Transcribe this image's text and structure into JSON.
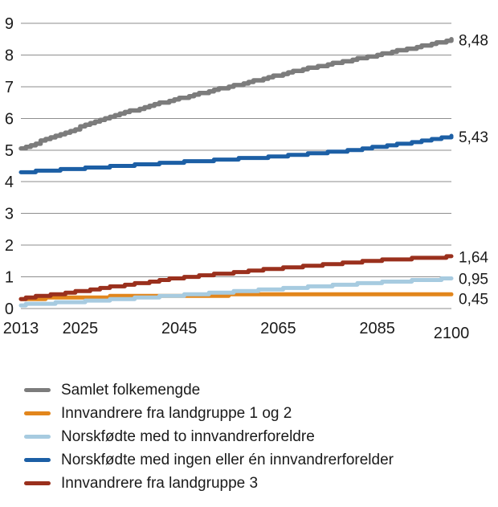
{
  "chart_data": {
    "type": "line",
    "title": "",
    "grid": true,
    "grid_color": "#8e8e8e",
    "legend_position": "bottom-left",
    "x_axis": {
      "range": [
        2013,
        2100
      ],
      "ticks": [
        2013,
        2025,
        2045,
        2065,
        2085,
        2100
      ]
    },
    "y_axis": {
      "range": [
        0,
        9
      ],
      "ticks": [
        0,
        1,
        2,
        3,
        4,
        5,
        6,
        7,
        8,
        9
      ]
    },
    "series": [
      {
        "id": "samlet-folkemengde",
        "name": "Samlet folkemengde",
        "color": "#7c7c7c",
        "width": 5.5,
        "end_label": "8,48",
        "end_value": 8.48,
        "points": [
          [
            2013,
            5.05
          ],
          [
            2020,
            5.45
          ],
          [
            2030,
            6.0
          ],
          [
            2040,
            6.45
          ],
          [
            2055,
            7.0
          ],
          [
            2070,
            7.55
          ],
          [
            2085,
            8.0
          ],
          [
            2100,
            8.48
          ]
        ]
      },
      {
        "id": "innvandrere-landgruppe-1-2",
        "name": "Innvandrere fra landgruppe 1 og 2",
        "color": "#e2861c",
        "width": 5,
        "end_label": "0,45",
        "end_value": 0.45,
        "points": [
          [
            2013,
            0.3
          ],
          [
            2025,
            0.36
          ],
          [
            2045,
            0.41
          ],
          [
            2065,
            0.44
          ],
          [
            2090,
            0.46
          ],
          [
            2100,
            0.45
          ]
        ]
      },
      {
        "id": "norskfodte-to-innvandrerforeldre",
        "name": "Norskfødte med to innvandrerforeldre",
        "color": "#a7cbe0",
        "width": 5,
        "end_label": "0,95",
        "end_value": 0.95,
        "points": [
          [
            2013,
            0.12
          ],
          [
            2025,
            0.22
          ],
          [
            2045,
            0.42
          ],
          [
            2065,
            0.62
          ],
          [
            2085,
            0.82
          ],
          [
            2100,
            0.95
          ]
        ]
      },
      {
        "id": "norskfodte-ingen-en-innvandrerforelder",
        "name": "Norskfødte med ingen eller én innvandrerforelder",
        "color": "#1c5fa5",
        "width": 5,
        "end_label": "5,43",
        "end_value": 5.43,
        "points": [
          [
            2013,
            4.3
          ],
          [
            2025,
            4.42
          ],
          [
            2045,
            4.62
          ],
          [
            2065,
            4.8
          ],
          [
            2080,
            5.0
          ],
          [
            2090,
            5.2
          ],
          [
            2100,
            5.43
          ]
        ]
      },
      {
        "id": "innvandrere-landgruppe-3",
        "name": "Innvandrere fra landgruppe 3",
        "color": "#9a301d",
        "width": 5,
        "end_label": "1,64",
        "end_value": 1.64,
        "points": [
          [
            2013,
            0.32
          ],
          [
            2025,
            0.55
          ],
          [
            2045,
            0.97
          ],
          [
            2065,
            1.27
          ],
          [
            2085,
            1.52
          ],
          [
            2100,
            1.64
          ]
        ]
      }
    ]
  }
}
